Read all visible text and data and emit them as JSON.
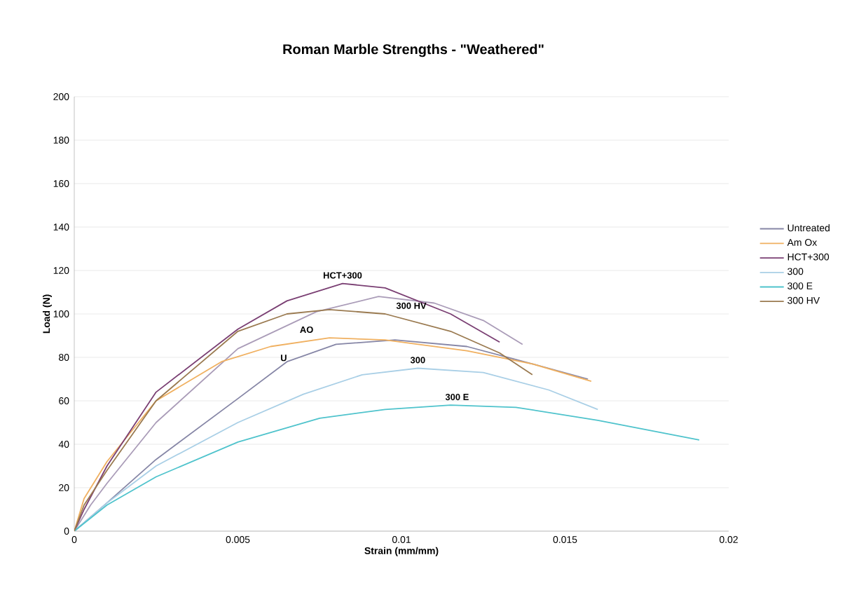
{
  "chart_data": {
    "type": "line",
    "title": "Roman Marble Strengths - \"Weathered\"",
    "xlabel": "Strain (mm/mm)",
    "ylabel": "Load (N)",
    "xlim": [
      0,
      0.02
    ],
    "xticks": [
      0,
      0.005,
      0.01,
      0.015,
      0.02
    ],
    "ylim": [
      0,
      200
    ],
    "yticks": [
      0,
      20,
      40,
      60,
      80,
      100,
      120,
      140,
      160,
      180,
      200
    ],
    "grid": "y",
    "legend": "right",
    "marker": "none",
    "line_style": "solid",
    "series": [
      {
        "name": "Untreated",
        "color": "#8686a6",
        "x": [
          0,
          0.001,
          0.0025,
          0.005,
          0.0065,
          0.008,
          0.0098,
          0.012,
          0.014,
          0.0157
        ],
        "values": [
          0,
          13,
          33,
          61,
          78,
          86,
          88,
          85,
          77,
          70
        ]
      },
      {
        "color": "#aa9cb8",
        "x": [
          0,
          0.0005,
          0.001,
          0.0025,
          0.005,
          0.0074,
          0.0093,
          0.011,
          0.0125,
          0.0137
        ],
        "values": [
          0,
          12,
          22,
          50,
          84,
          101,
          108,
          105,
          97,
          86
        ]
      },
      {
        "name": "Am Ox",
        "color": "#f0b060",
        "x": [
          0,
          0.0003,
          0.001,
          0.0025,
          0.0045,
          0.006,
          0.0078,
          0.0095,
          0.012,
          0.014,
          0.0158
        ],
        "values": [
          0,
          15,
          32,
          60,
          78,
          85,
          89,
          88,
          83,
          77,
          69
        ]
      },
      {
        "name": "HCT+300",
        "color": "#7a3f73",
        "x": [
          0,
          0.0003,
          0.001,
          0.0025,
          0.005,
          0.0065,
          0.0082,
          0.0095,
          0.0115,
          0.013
        ],
        "values": [
          0,
          10,
          30,
          64,
          93,
          106,
          114,
          112,
          100,
          87
        ]
      },
      {
        "name": "300",
        "color": "#a9cfe6",
        "x": [
          0,
          0.001,
          0.0025,
          0.005,
          0.007,
          0.0088,
          0.0105,
          0.0125,
          0.0145,
          0.016
        ],
        "values": [
          0,
          13,
          30,
          50,
          63,
          72,
          75,
          73,
          65,
          56
        ]
      },
      {
        "name": "300 E",
        "color": "#4fc3cc",
        "x": [
          0,
          0.001,
          0.0025,
          0.005,
          0.0075,
          0.0095,
          0.0115,
          0.0135,
          0.016,
          0.0191
        ],
        "values": [
          0,
          12,
          25,
          41,
          52,
          56,
          58,
          57,
          51,
          42
        ]
      },
      {
        "name": "300 HV",
        "color": "#9a7a50",
        "x": [
          0,
          0.0003,
          0.001,
          0.0025,
          0.005,
          0.0065,
          0.0078,
          0.0095,
          0.0115,
          0.013,
          0.014
        ],
        "values": [
          0,
          12,
          28,
          60,
          92,
          100,
          102,
          100,
          92,
          82,
          72
        ]
      }
    ],
    "annotations": [
      {
        "text": "HCT+300",
        "x": 0.0082,
        "y": 114
      },
      {
        "text": "300 HV",
        "x": 0.0103,
        "y": 100
      },
      {
        "text": "AO",
        "x": 0.0071,
        "y": 89
      },
      {
        "text": "U",
        "x": 0.0064,
        "y": 76
      },
      {
        "text": "300",
        "x": 0.0105,
        "y": 75
      },
      {
        "text": "300 E",
        "x": 0.0117,
        "y": 58
      }
    ]
  }
}
